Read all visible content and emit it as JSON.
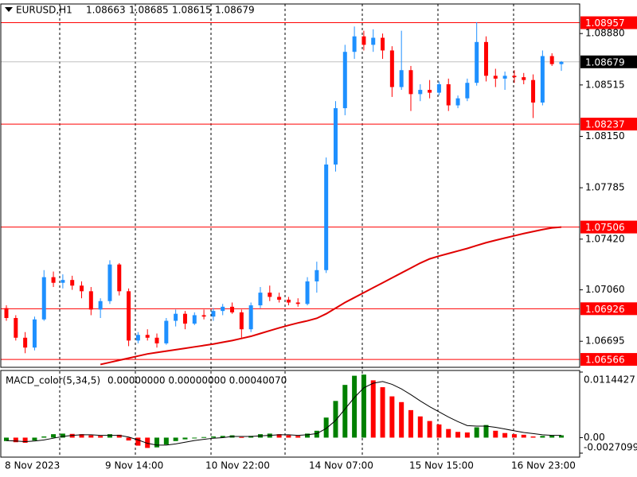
{
  "chart_data": [
    {
      "type": "candlestick",
      "title": "EURUSD,H1",
      "candles": [
        [
          1.0693,
          1.0695,
          1.0684,
          1.0686
        ],
        [
          1.0686,
          1.0688,
          1.067,
          1.0672
        ],
        [
          1.0672,
          1.0676,
          1.0661,
          1.0665
        ],
        [
          1.0665,
          1.0687,
          1.0663,
          1.0685
        ],
        [
          1.0685,
          1.072,
          1.0684,
          1.0715
        ],
        [
          1.0715,
          1.0719,
          1.0708,
          1.0711
        ],
        [
          1.0711,
          1.0717,
          1.0707,
          1.0713
        ],
        [
          1.0713,
          1.0716,
          1.0706,
          1.0709
        ],
        [
          1.0709,
          1.0712,
          1.07,
          1.0705
        ],
        [
          1.0705,
          1.0708,
          1.0688,
          1.0692
        ],
        [
          1.0692,
          1.07,
          1.0686,
          1.0698
        ],
        [
          1.0698,
          1.0727,
          1.0696,
          1.0724
        ],
        [
          1.0724,
          1.0725,
          1.0702,
          1.0705
        ],
        [
          1.0705,
          1.0707,
          1.0666,
          1.067
        ],
        [
          1.067,
          1.0676,
          1.0668,
          1.0674
        ],
        [
          1.0674,
          1.0678,
          1.067,
          1.0672
        ],
        [
          1.0672,
          1.0675,
          1.0665,
          1.0668
        ],
        [
          1.0668,
          1.0686,
          1.0667,
          1.0684
        ],
        [
          1.0684,
          1.0692,
          1.068,
          1.0689
        ],
        [
          1.0689,
          1.0691,
          1.0678,
          1.0682
        ],
        [
          1.0682,
          1.069,
          1.0681,
          1.0688
        ],
        [
          1.0688,
          1.0692,
          1.0685,
          1.0687
        ],
        [
          1.0687,
          1.0693,
          1.0684,
          1.0691
        ],
        [
          1.0691,
          1.0696,
          1.0688,
          1.0694
        ],
        [
          1.0694,
          1.0697,
          1.0689,
          1.069
        ],
        [
          1.069,
          1.0692,
          1.0672,
          1.0678
        ],
        [
          1.0678,
          1.0697,
          1.0676,
          1.0695
        ],
        [
          1.0695,
          1.0708,
          1.0693,
          1.0704
        ],
        [
          1.0704,
          1.0709,
          1.0698,
          1.0701
        ],
        [
          1.0701,
          1.0704,
          1.0697,
          1.0699
        ],
        [
          1.0699,
          1.0701,
          1.0695,
          1.0697
        ],
        [
          1.0697,
          1.07,
          1.0694,
          1.0696
        ],
        [
          1.0696,
          1.0715,
          1.0695,
          1.0712
        ],
        [
          1.0712,
          1.0726,
          1.0704,
          1.072
        ],
        [
          1.072,
          1.08,
          1.0718,
          1.0795
        ],
        [
          1.0795,
          1.084,
          1.079,
          1.0835
        ],
        [
          1.0835,
          1.088,
          1.083,
          1.0875
        ],
        [
          1.0875,
          1.0893,
          1.087,
          1.0886
        ],
        [
          1.0886,
          1.089,
          1.0876,
          1.088
        ],
        [
          1.088,
          1.0891,
          1.0875,
          1.0885
        ],
        [
          1.0885,
          1.0888,
          1.087,
          1.0876
        ],
        [
          1.0876,
          1.0879,
          1.0843,
          1.085
        ],
        [
          1.085,
          1.089,
          1.0848,
          1.0862
        ],
        [
          1.0862,
          1.0865,
          1.0833,
          1.0845
        ],
        [
          1.0845,
          1.0852,
          1.084,
          1.0848
        ],
        [
          1.0848,
          1.0855,
          1.0842,
          1.0846
        ],
        [
          1.0846,
          1.0854,
          1.0844,
          1.0852
        ],
        [
          1.0852,
          1.0856,
          1.0833,
          1.0837
        ],
        [
          1.0837,
          1.0844,
          1.0835,
          1.0842
        ],
        [
          1.0842,
          1.0856,
          1.084,
          1.0853
        ],
        [
          1.0853,
          1.0896,
          1.0851,
          1.0882
        ],
        [
          1.0882,
          1.0886,
          1.0854,
          1.0858
        ],
        [
          1.0858,
          1.0863,
          1.085,
          1.0856
        ],
        [
          1.0856,
          1.0861,
          1.0848,
          1.0858
        ],
        [
          1.0858,
          1.0862,
          1.0853,
          1.0857
        ],
        [
          1.0857,
          1.086,
          1.0852,
          1.0855
        ],
        [
          1.0855,
          1.0859,
          1.0828,
          1.0839
        ],
        [
          1.0839,
          1.0876,
          1.0837,
          1.0872
        ],
        [
          1.0872,
          1.0874,
          1.0865,
          1.08663
        ],
        [
          1.08663,
          1.08685,
          1.08615,
          1.08679
        ]
      ],
      "up_color": "#1e90ff",
      "down_color": "#ff0000",
      "moving_average": {
        "color": "#e00000",
        "values": [
          null,
          null,
          null,
          null,
          null,
          null,
          null,
          null,
          null,
          null,
          1.0653,
          1.06545,
          1.0656,
          1.06575,
          1.0659,
          1.06605,
          1.06615,
          1.06625,
          1.06635,
          1.06645,
          1.06655,
          1.06665,
          1.06675,
          1.06688,
          1.067,
          1.06715,
          1.0673,
          1.0675,
          1.0677,
          1.0679,
          1.06808,
          1.06825,
          1.0684,
          1.06858,
          1.0689,
          1.0693,
          1.0697,
          1.07005,
          1.0704,
          1.07075,
          1.0711,
          1.07145,
          1.0718,
          1.07215,
          1.0725,
          1.0728,
          1.073,
          1.07318,
          1.07336,
          1.07354,
          1.07375,
          1.07395,
          1.07412,
          1.07428,
          1.07444,
          1.0746,
          1.07474,
          1.07488,
          1.075,
          1.07506
        ]
      },
      "levels": [
        1.08957,
        1.08237,
        1.07506,
        1.06926,
        1.06566
      ],
      "level_color": "#ff0000",
      "current_price_color": "#c0c0c0",
      "ylim": [
        1.0651,
        1.0909
      ],
      "yticks": [
        {
          "value": 1.0888,
          "label": "1.08880"
        },
        1.08515,
        {
          "value": 1.0815,
          "label": "1.08150"
        },
        1.07785,
        {
          "value": 1.0742,
          "label": "1.07420"
        },
        {
          "value": 1.0706,
          "label": "1.07060"
        },
        1.06695
      ],
      "x_labels": [
        "8 Nov 2023",
        "9 Nov 14:00",
        "10 Nov 22:00",
        "14 Nov 07:00",
        "15 Nov 15:00",
        "16 Nov 23:00"
      ]
    },
    {
      "type": "macd",
      "title": "MACD_color(5,34,5)",
      "header_values": "0.00000000 0.00000000 0.00040070",
      "values": [
        -0.0006,
        -0.0008,
        -0.0009,
        -0.0005,
        0.0002,
        0.0006,
        0.0007,
        0.00065,
        0.0006,
        0.0004,
        0.0003,
        0.0006,
        0.0005,
        -0.0005,
        -0.0014,
        -0.0018,
        -0.0017,
        -0.0012,
        -0.0006,
        -0.0003,
        -0.0001,
        0.0001,
        0.0002,
        0.0003,
        0.0004,
        0.0001,
        0.0003,
        0.0006,
        0.0007,
        0.0006,
        0.0004,
        0.0003,
        0.0007,
        0.0012,
        0.0035,
        0.0064,
        0.0092,
        0.0108,
        0.011,
        0.01,
        0.0088,
        0.0072,
        0.0062,
        0.0048,
        0.0037,
        0.0029,
        0.0023,
        0.0015,
        0.001,
        0.0009,
        0.0018,
        0.0022,
        0.0012,
        0.0008,
        0.0006,
        0.0005,
        0.0002,
        0.0003,
        0.0004,
        0.0004007
      ],
      "up_color": "#008000",
      "down_color": "#ff0000",
      "signal": {
        "color": "#000000",
        "values": [
          -0.0005,
          -0.0006,
          -0.0007,
          -0.0006,
          -0.0004,
          -0.0001,
          0.0002,
          0.0004,
          0.0005,
          0.0005,
          0.0004,
          0.0004,
          0.0004,
          0.0001,
          -0.0004,
          -0.001,
          -0.0013,
          -0.0013,
          -0.0011,
          -0.0008,
          -0.0005,
          -0.0003,
          -0.0001,
          0,
          0.0002,
          0.0002,
          0.0002,
          0.0003,
          0.0004,
          0.0005,
          0.0005,
          0.0004,
          0.0005,
          0.0007,
          0.0016,
          0.003,
          0.005,
          0.007,
          0.0087,
          0.0095,
          0.0098,
          0.0093,
          0.0085,
          0.0075,
          0.0064,
          0.0054,
          0.0045,
          0.0036,
          0.0028,
          0.0021,
          0.002,
          0.002,
          0.0018,
          0.0015,
          0.0012,
          0.0009,
          0.0007,
          0.0005,
          0.0004,
          0.0004
        ]
      },
      "ylim": [
        -0.0027099,
        0.0114427
      ],
      "yticks": [
        0.0114427,
        {
          "value": 0,
          "label": "0.00"
        },
        -0.0027099
      ]
    }
  ]
}
